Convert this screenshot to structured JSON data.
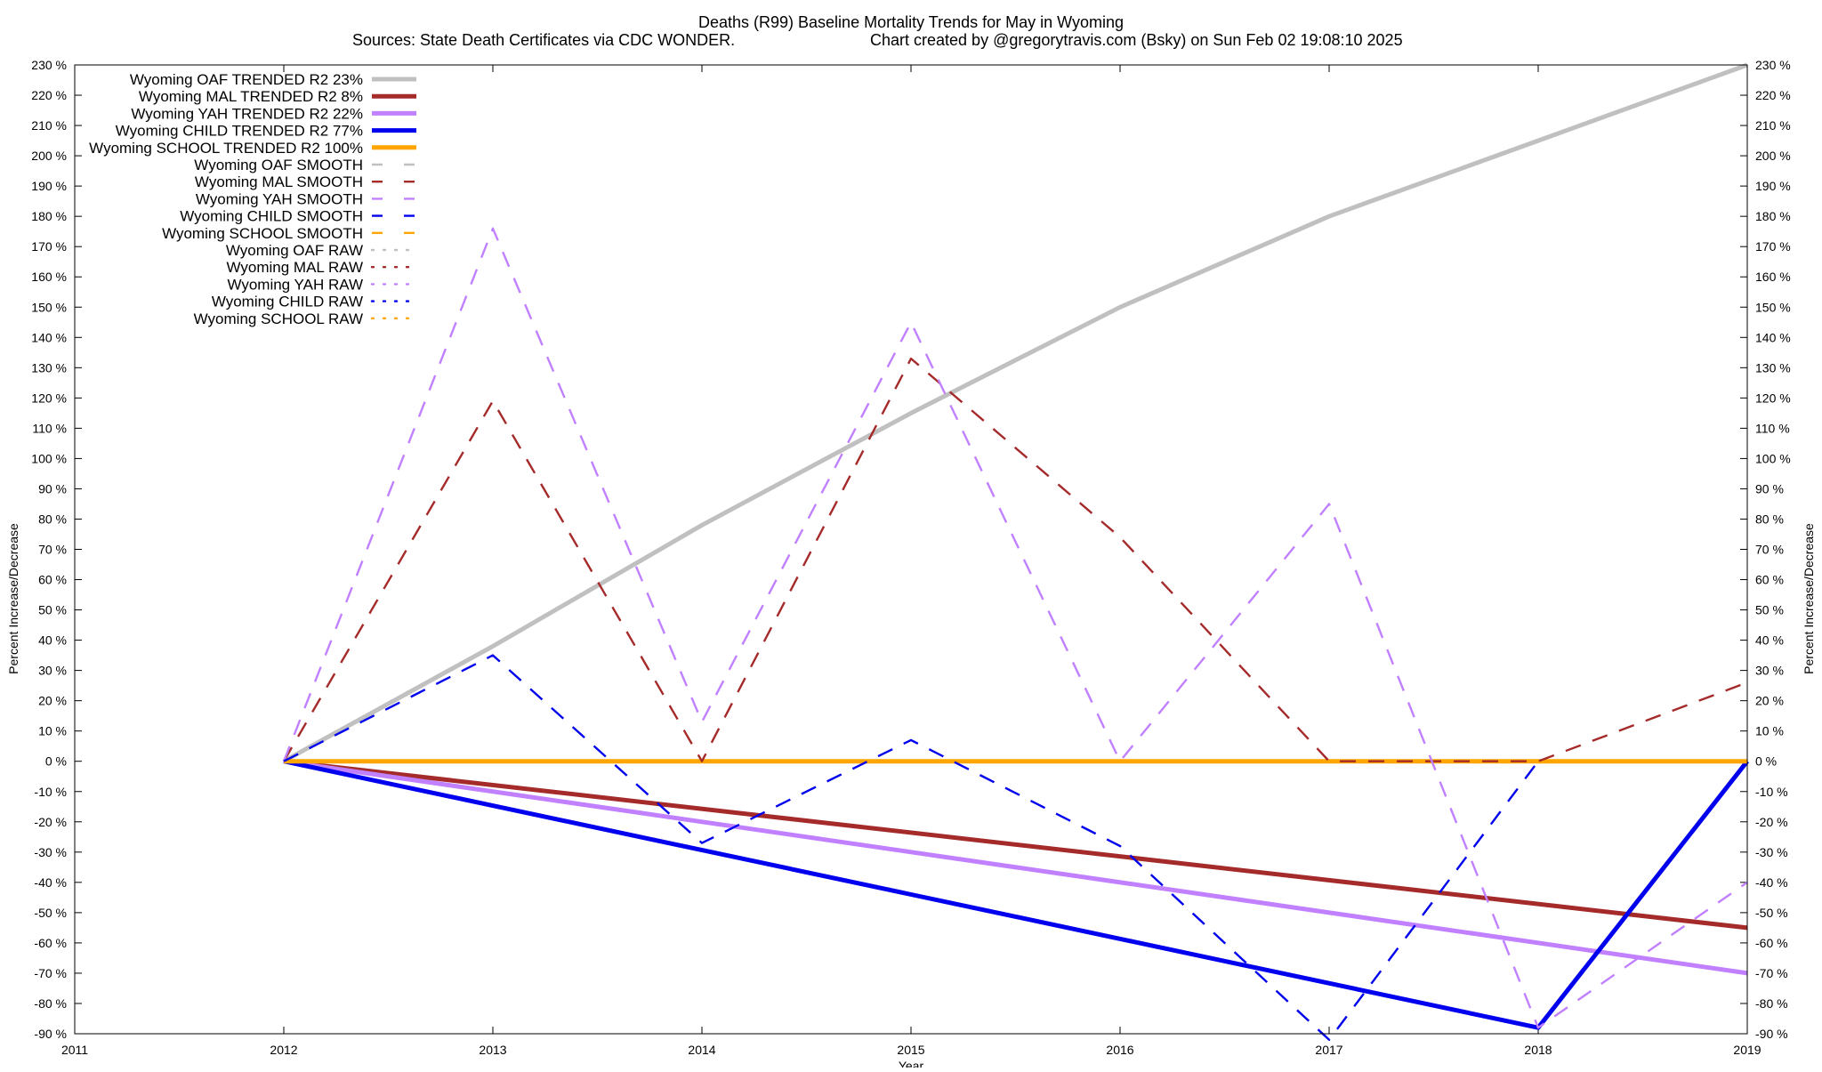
{
  "chart_data": {
    "type": "line",
    "title": "Deaths (R99)  Baseline Mortality Trends for May in Wyoming",
    "subtitle_left": "Sources: State Death Certificates via CDC WONDER.",
    "subtitle_right": "Chart created by @gregorytravis.com (Bsky) on Sun Feb 02 19:08:10 2025",
    "xlabel": "Year",
    "ylabel_left": "Percent Increase/Decrease",
    "ylabel_right": "Percent Increase/Decrease",
    "xlim": [
      2011,
      2019
    ],
    "ylim": [
      -90,
      230
    ],
    "x_ticks": [
      "2011",
      "2012",
      "2013",
      "2014",
      "2015",
      "2016",
      "2017",
      "2018",
      "2019"
    ],
    "y_ticks": [
      "230 %",
      "220 %",
      "210 %",
      "200 %",
      "190 %",
      "180 %",
      "170 %",
      "160 %",
      "150 %",
      "140 %",
      "130 %",
      "120 %",
      "110 %",
      "100 %",
      "90 %",
      "80 %",
      "70 %",
      "60 %",
      "50 %",
      "40 %",
      "30 %",
      "20 %",
      "10 %",
      "0 %",
      "-10 %",
      "-20 %",
      "-30 %",
      "-40 %",
      "-50 %",
      "-60 %",
      "-70 %",
      "-80 %",
      "-90 %"
    ],
    "legend_position": "top-left",
    "series": [
      {
        "name": "Wyoming OAF TRENDED R2  23%",
        "color": "#c0c0c0",
        "style": "solid",
        "x": [
          2012,
          2013,
          2014,
          2015,
          2016,
          2017,
          2018,
          2019
        ],
        "y": [
          0,
          38,
          78,
          115,
          150,
          180,
          205,
          230
        ]
      },
      {
        "name": "Wyoming MAL TRENDED R2   8%",
        "color": "#a52a2a",
        "style": "solid",
        "x": [
          2012,
          2019
        ],
        "y": [
          0,
          -55
        ]
      },
      {
        "name": "Wyoming YAH TRENDED R2  22%",
        "color": "#c080ff",
        "style": "solid",
        "x": [
          2012,
          2019
        ],
        "y": [
          0,
          -70
        ]
      },
      {
        "name": "Wyoming CHILD TRENDED R2  77%",
        "color": "#0000ee",
        "style": "solid",
        "x": [
          2012,
          2018,
          2019
        ],
        "y": [
          0,
          -88,
          0
        ]
      },
      {
        "name": "Wyoming SCHOOL TRENDED R2 100%",
        "color": "#ffa500",
        "style": "solid",
        "x": [
          2012,
          2019
        ],
        "y": [
          0,
          0
        ]
      },
      {
        "name": "Wyoming OAF SMOOTH",
        "color": "#c0c0c0",
        "style": "dashed",
        "x": [],
        "y": []
      },
      {
        "name": "Wyoming MAL SMOOTH",
        "color": "#a52a2a",
        "style": "dashed",
        "x": [
          2012,
          2013,
          2014,
          2015,
          2016,
          2017,
          2018,
          2019
        ],
        "y": [
          0,
          119,
          0,
          133,
          74,
          0,
          0,
          26
        ]
      },
      {
        "name": "Wyoming YAH SMOOTH",
        "color": "#c080ff",
        "style": "dashed",
        "x": [
          2012,
          2013,
          2014,
          2015,
          2016,
          2017,
          2018,
          2019
        ],
        "y": [
          0,
          176,
          13,
          145,
          0,
          85,
          -88,
          -40
        ]
      },
      {
        "name": "Wyoming CHILD SMOOTH",
        "color": "#0000ee",
        "style": "dashed",
        "x": [
          2012,
          2013,
          2014,
          2015,
          2016,
          2017,
          2018
        ],
        "y": [
          0,
          35,
          -27,
          7,
          -28,
          -92,
          0
        ]
      },
      {
        "name": "Wyoming SCHOOL SMOOTH",
        "color": "#ffa500",
        "style": "dashed",
        "x": [],
        "y": []
      },
      {
        "name": "Wyoming OAF RAW",
        "color": "#c0c0c0",
        "style": "dotted",
        "x": [],
        "y": []
      },
      {
        "name": "Wyoming MAL RAW",
        "color": "#a52a2a",
        "style": "dotted",
        "x": [],
        "y": []
      },
      {
        "name": "Wyoming YAH RAW",
        "color": "#c080ff",
        "style": "dotted",
        "x": [],
        "y": []
      },
      {
        "name": "Wyoming CHILD RAW",
        "color": "#0000ee",
        "style": "dotted",
        "x": [],
        "y": []
      },
      {
        "name": "Wyoming SCHOOL RAW",
        "color": "#ffa500",
        "style": "dotted",
        "x": [],
        "y": []
      }
    ]
  }
}
